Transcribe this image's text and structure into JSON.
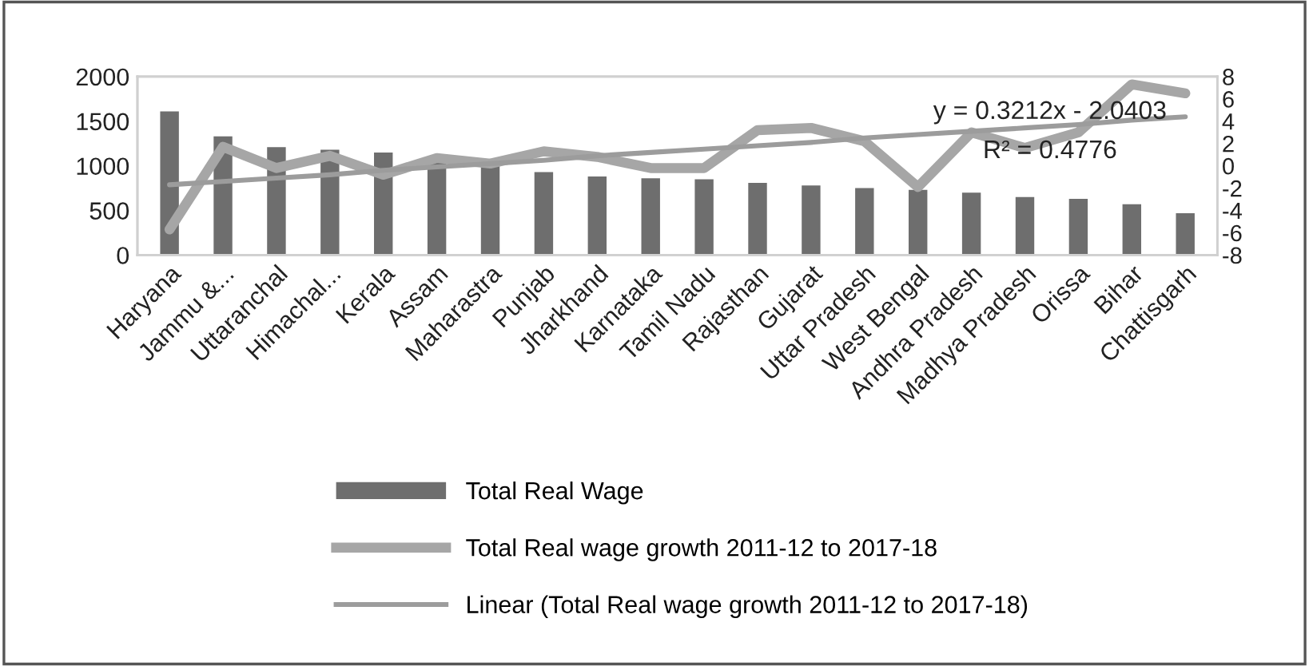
{
  "chart_data": {
    "type": "bar",
    "categories": [
      "Haryana",
      "Jammu &...",
      "Uttaranchal",
      "Himachal...",
      "Kerala",
      "Assam",
      "Maharastra",
      "Punjab",
      "Jharkhand",
      "Karnataka",
      "Tamil Nadu",
      "Rajasthan",
      "Gujarat",
      "Uttar Pradesh",
      "West Bengal",
      "Andhra Pradesh",
      "Madhya Pradesh",
      "Orissa",
      "Bihar",
      "Chattisgarh"
    ],
    "series": [
      {
        "name": "Total Real Wage",
        "color": "#6e6e6e",
        "values": [
          1610,
          1330,
          1210,
          1180,
          1150,
          1050,
          1010,
          930,
          880,
          860,
          850,
          810,
          780,
          750,
          730,
          700,
          650,
          630,
          570,
          470
        ]
      },
      {
        "name": "Total Real wage growth 2011-12 to 2017-18",
        "type": "line",
        "axis": "y2",
        "color": "#a6a6a6",
        "values": [
          -5.7,
          1.7,
          -0.2,
          0.9,
          -0.8,
          0.7,
          0.2,
          1.3,
          0.8,
          -0.2,
          -0.2,
          3.2,
          3.4,
          2.2,
          -1.9,
          3.0,
          1.6,
          3.0,
          7.3,
          6.5
        ]
      },
      {
        "name": "Linear (Total Real wage growth 2011-12 to 2017-18)",
        "type": "line",
        "axis": "y2",
        "color": "#9c9c9c",
        "values": [
          -1.7,
          -1.4,
          -1.1,
          -0.8,
          -0.4,
          -0.1,
          0.2,
          0.5,
          0.9,
          1.2,
          1.5,
          1.8,
          2.1,
          2.5,
          2.8,
          3.1,
          3.4,
          3.7,
          4.1,
          4.4
        ]
      }
    ],
    "ylim": [
      0,
      2000
    ],
    "yticks": [
      0,
      500,
      1000,
      1500,
      2000
    ],
    "y2lim": [
      -8,
      8
    ],
    "y2ticks": [
      -8,
      -6,
      -4,
      -2,
      0,
      2,
      4,
      6,
      8
    ],
    "annotations": [
      "y = 0.3212x - 2.0403",
      "R² = 0.4776"
    ],
    "grid": false,
    "legend": "bottom",
    "marker": "none",
    "line_style": "solid"
  }
}
